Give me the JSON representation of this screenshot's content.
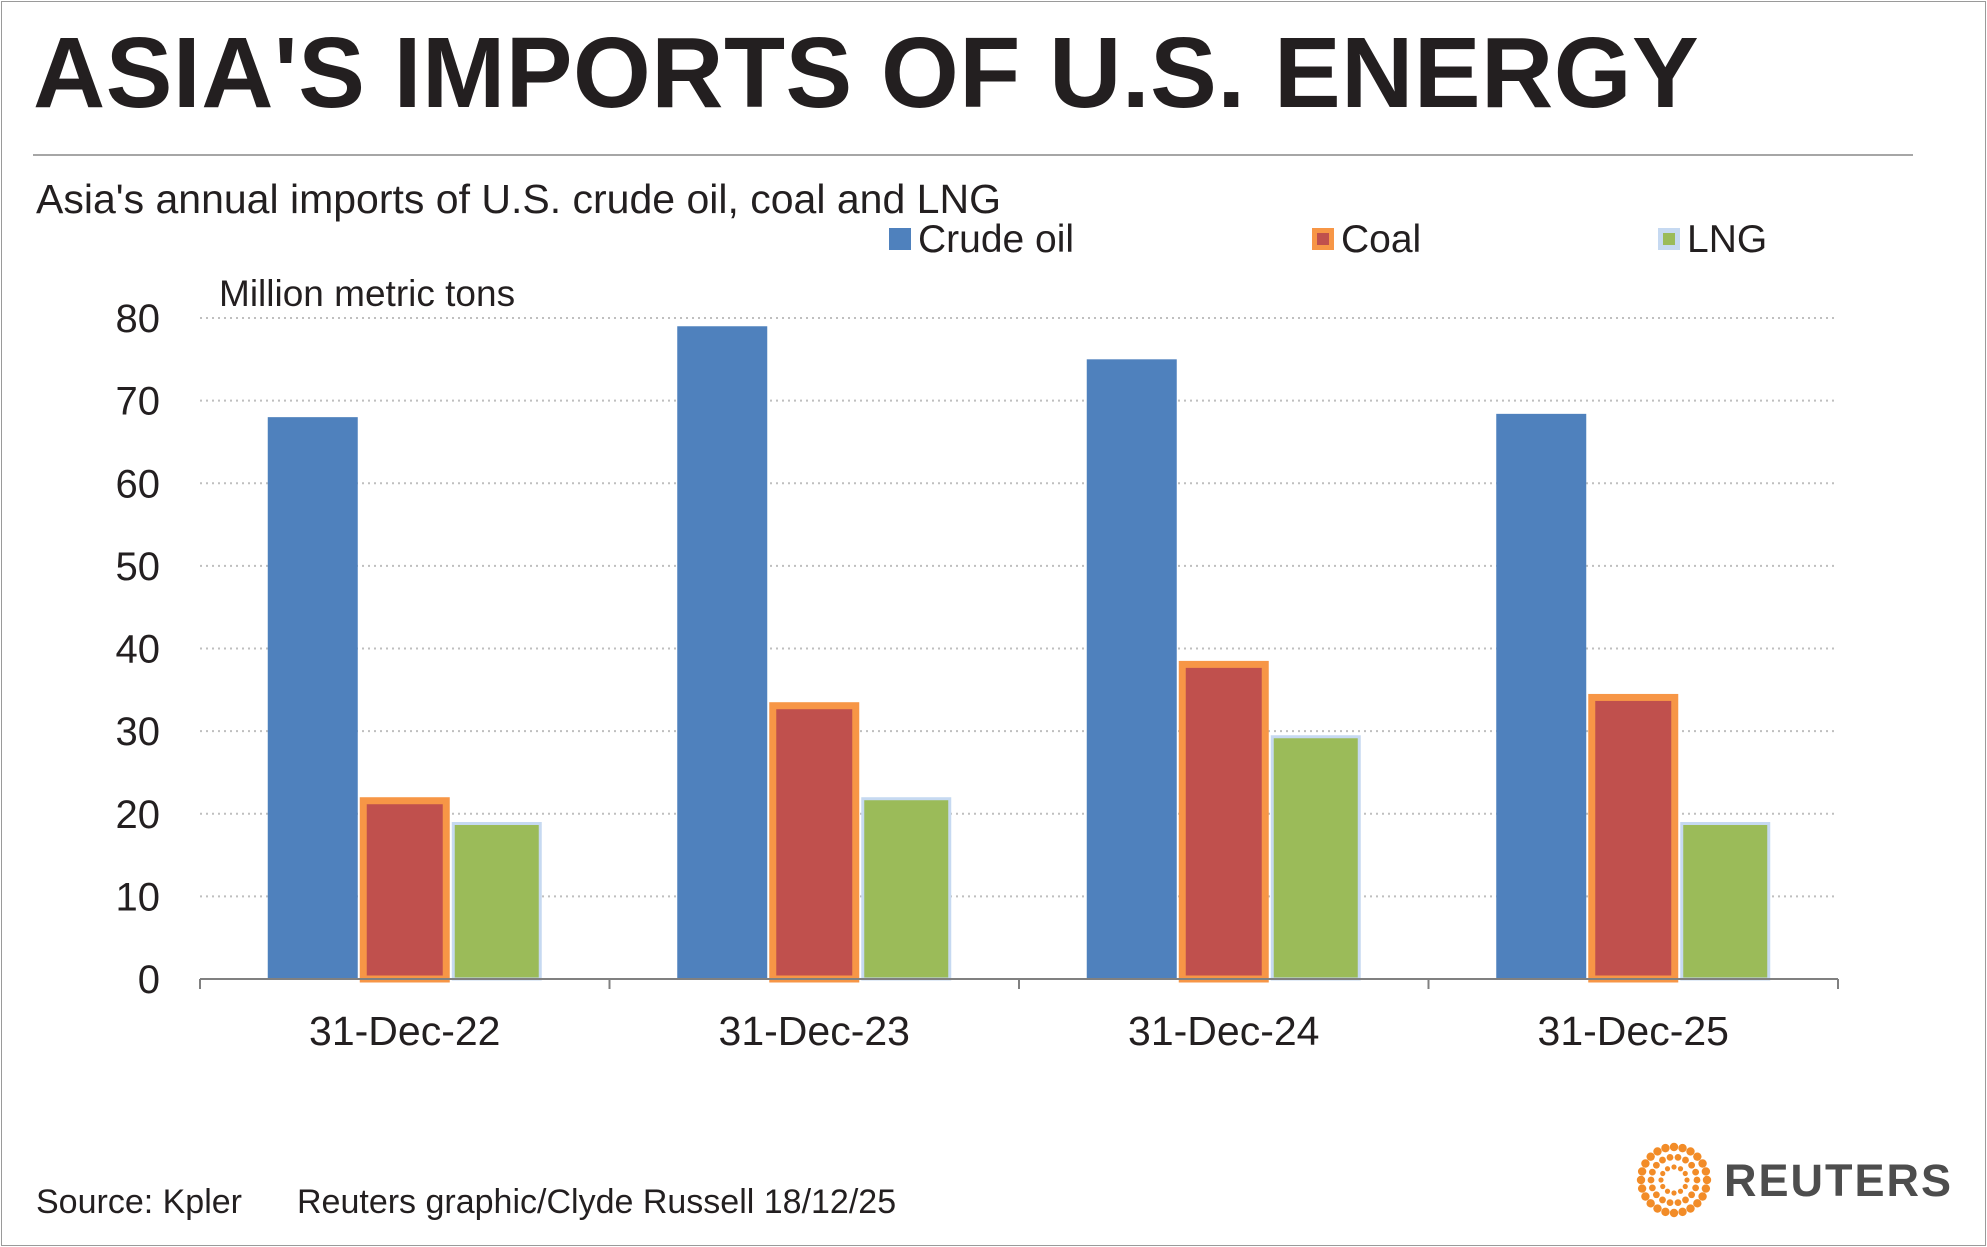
{
  "title": "ASIA'S IMPORTS OF U.S. ENERGY",
  "subtitle": "Asia's annual imports of U.S. crude oil, coal and LNG",
  "source": "Source: Kpler",
  "credit": "Reuters graphic/Clyde Russell 18/12/25",
  "brand": "REUTERS",
  "colors": {
    "crude": "#4f81bd",
    "coal_fill": "#c0504d",
    "coal_border": "#f79646",
    "lng": "#9bbb59",
    "lng_border": "#c6d9f1",
    "grid": "#bfbfbf",
    "axis": "#808080",
    "brand_orange": "#f28c28"
  },
  "chart_data": {
    "type": "bar",
    "ylabel": "Million metric tons",
    "ylim": [
      0,
      80
    ],
    "yticks": [
      0,
      10,
      20,
      30,
      40,
      50,
      60,
      70,
      80
    ],
    "grid": true,
    "legend_position": "top-right",
    "categories": [
      "31-Dec-22",
      "31-Dec-23",
      "31-Dec-24",
      "31-Dec-25"
    ],
    "series": [
      {
        "name": "Crude oil",
        "values": [
          68,
          79,
          75,
          68.4
        ]
      },
      {
        "name": "Coal",
        "values": [
          22,
          33.5,
          38.5,
          34.5
        ]
      },
      {
        "name": "LNG",
        "values": [
          19,
          22,
          29.5,
          19
        ]
      }
    ]
  }
}
